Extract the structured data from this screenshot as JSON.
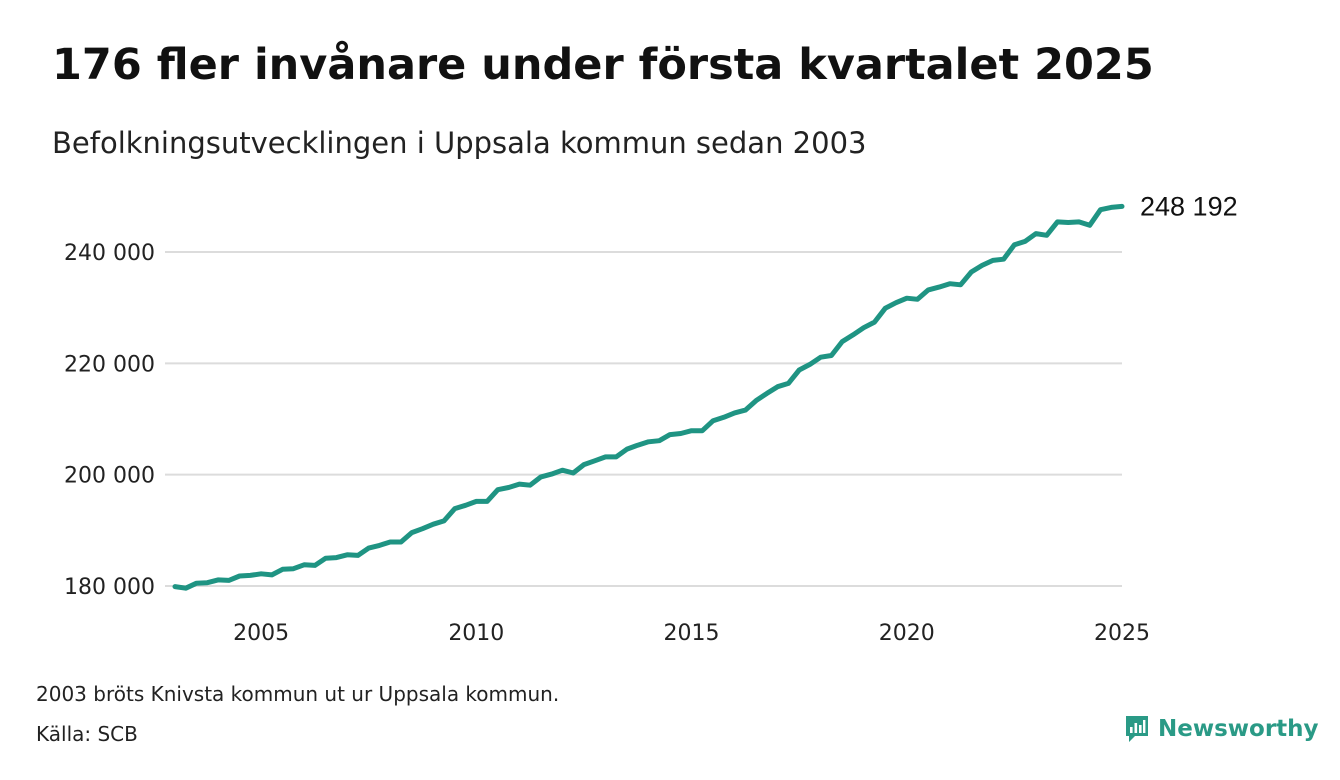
{
  "colors": {
    "line": "#1f9483",
    "grid": "#dcdcdc",
    "brand": "#2a9a86"
  },
  "title": "176 fler invånare under första kvartalet 2025",
  "subtitle": "Befolkningsutvecklingen i Uppsala kommun sedan 2003",
  "footnote": "2003 bröts Knivsta kommun ut ur Uppsala kommun.",
  "source": "Källa: SCB",
  "brand": {
    "name": "Newsworthy",
    "icon": "newsworthy-logo-icon"
  },
  "chart_data": {
    "type": "line",
    "title": "176 fler invånare under första kvartalet 2025",
    "subtitle": "Befolkningsutvecklingen i Uppsala kommun sedan 2003",
    "xlabel": "",
    "ylabel": "",
    "xlim": [
      2003.0,
      2025.0
    ],
    "ylim": [
      178000,
      250000
    ],
    "grid": true,
    "x_ticks": [
      2005,
      2010,
      2015,
      2020,
      2025
    ],
    "x_tick_labels": [
      "2005",
      "2010",
      "2015",
      "2020",
      "2025"
    ],
    "y_ticks": [
      180000,
      200000,
      220000,
      240000
    ],
    "y_tick_labels": [
      "180 000",
      "200 000",
      "220 000",
      "240 000"
    ],
    "end_label": "248 192",
    "series": [
      {
        "x": [
          2003.0,
          2003.25,
          2003.5,
          2003.75,
          2004.0,
          2004.25,
          2004.5,
          2004.75,
          2005.0,
          2005.25,
          2005.5,
          2005.75,
          2006.0,
          2006.25,
          2006.5,
          2006.75,
          2007.0,
          2007.25,
          2007.5,
          2007.75,
          2008.0,
          2008.25,
          2008.5,
          2008.75,
          2009.0,
          2009.25,
          2009.5,
          2009.75,
          2010.0,
          2010.25,
          2010.5,
          2010.75,
          2011.0,
          2011.25,
          2011.5,
          2011.75,
          2012.0,
          2012.25,
          2012.5,
          2012.75,
          2013.0,
          2013.25,
          2013.5,
          2013.75,
          2014.0,
          2014.25,
          2014.5,
          2014.75,
          2015.0,
          2015.25,
          2015.5,
          2015.75,
          2016.0,
          2016.25,
          2016.5,
          2016.75,
          2017.0,
          2017.25,
          2017.5,
          2017.75,
          2018.0,
          2018.25,
          2018.5,
          2018.75,
          2019.0,
          2019.25,
          2019.5,
          2019.75,
          2020.0,
          2020.25,
          2020.5,
          2020.75,
          2021.0,
          2021.25,
          2021.5,
          2021.75,
          2022.0,
          2022.25,
          2022.5,
          2022.75,
          2023.0,
          2023.25,
          2023.5,
          2023.75,
          2024.0,
          2024.25,
          2024.5,
          2024.75,
          2025.0
        ],
        "y": [
          179900,
          179600,
          180500,
          180600,
          181100,
          181000,
          181800,
          181900,
          182200,
          182000,
          183000,
          183100,
          183800,
          183700,
          185000,
          185100,
          185600,
          185500,
          186800,
          187300,
          187900,
          187900,
          189600,
          190300,
          191100,
          191700,
          193900,
          194500,
          195200,
          195200,
          197300,
          197700,
          198300,
          198100,
          199600,
          200100,
          200800,
          200300,
          201800,
          202500,
          203200,
          203200,
          204600,
          205300,
          205900,
          206100,
          207200,
          207400,
          207900,
          207900,
          209700,
          210300,
          211100,
          211600,
          213300,
          214600,
          215800,
          216400,
          218800,
          219800,
          221100,
          221400,
          223900,
          225100,
          226400,
          227400,
          229900,
          230900,
          231700,
          231500,
          233200,
          233700,
          234300,
          234100,
          236400,
          237600,
          238500,
          238700,
          241300,
          241900,
          243300,
          243000,
          245400,
          245300,
          245400,
          244800,
          247600,
          248016,
          248192
        ]
      }
    ]
  }
}
